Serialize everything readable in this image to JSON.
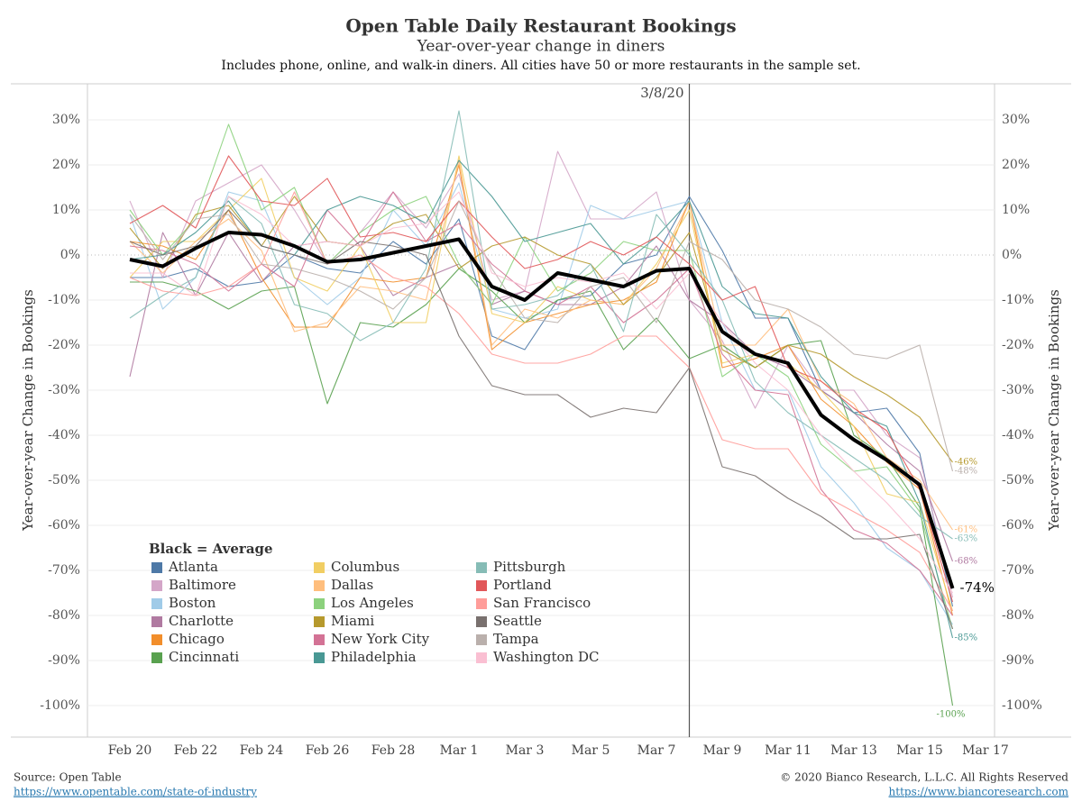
{
  "chart_data": {
    "type": "line",
    "title": "Open Table Daily Restaurant Bookings",
    "subtitle": "Year-over-year change in diners",
    "note": "Includes phone, online, and walk-in diners. All cities have 50 or more restaurants in the sample set.",
    "y_label": "Year-over-year Change in Bookings",
    "y2_label": "Year-over-year Change in Bookings",
    "legend_title": "Black = Average",
    "vline": {
      "label": "3/8/20",
      "category": 17
    },
    "source": "Source: Open Table",
    "source_url": "https://www.opentable.com/state-of-industry",
    "copyright": "© 2020 Bianco Research, L.L.C. All Rights Reserved",
    "copyright_url": "https://www.biancoresearch.com",
    "categories": [
      "Feb 20",
      null,
      "Feb 22",
      null,
      "Feb 24",
      null,
      "Feb 26",
      null,
      "Feb 28",
      null,
      "Mar 1",
      null,
      "Mar 3",
      null,
      "Mar 5",
      null,
      "Mar 7",
      null,
      "Mar 9",
      null,
      "Mar 11",
      null,
      "Mar 13",
      null,
      "Mar 15",
      null,
      "Mar 17"
    ],
    "ylim": [
      -107,
      38
    ],
    "yticks": [
      {
        "value": 30,
        "label": "30%"
      },
      {
        "value": 20,
        "label": "20%"
      },
      {
        "value": 10,
        "label": "10%"
      },
      {
        "value": 0,
        "label": "0%"
      },
      {
        "value": -10,
        "label": "-10%"
      },
      {
        "value": -20,
        "label": "-20%"
      },
      {
        "value": -30,
        "label": "-30%"
      },
      {
        "value": -40,
        "label": "-40%"
      },
      {
        "value": -50,
        "label": "-50%"
      },
      {
        "value": -60,
        "label": "-60%"
      },
      {
        "value": -70,
        "label": "-70%"
      },
      {
        "value": -80,
        "label": "-80%"
      },
      {
        "value": -90,
        "label": "-90%"
      },
      {
        "value": -100,
        "label": "-100%"
      }
    ],
    "grid": true,
    "series": [
      {
        "name": "Atlanta",
        "color": "#4e79a7",
        "values": [
          -5,
          -5,
          -3,
          -7,
          -6,
          0,
          -3,
          -4,
          3,
          -2,
          8,
          -18,
          -21,
          -10,
          -9,
          -2,
          0,
          13,
          1,
          -14,
          -14,
          -30,
          -35,
          -34,
          -44,
          -78,
          null
        ]
      },
      {
        "name": "Baltimore",
        "color": "#d4a6c8",
        "values": [
          12,
          -5,
          12,
          16,
          20,
          10,
          -2,
          5,
          14,
          6,
          18,
          -10,
          -8,
          23,
          8,
          8,
          14,
          -10,
          -19,
          -34,
          -20,
          -30,
          -30,
          -40,
          -45,
          -76,
          null
        ]
      },
      {
        "name": "Boston",
        "color": "#a0cbe8",
        "values": [
          9,
          -12,
          -5,
          14,
          12,
          -5,
          -11,
          -5,
          10,
          2,
          16,
          -12,
          -14,
          -12,
          11,
          8,
          10,
          12,
          -15,
          -30,
          -30,
          -47,
          -55,
          -65,
          -70,
          -82,
          null
        ]
      },
      {
        "name": "Charlotte",
        "color": "#b07aa1",
        "values": [
          -27,
          5,
          -9,
          5,
          -6,
          2,
          3,
          2,
          -9,
          -5,
          -2,
          -11,
          -8,
          -11,
          -11,
          -7,
          2,
          -10,
          -15,
          -22,
          -25,
          -30,
          -35,
          -42,
          -48,
          -68,
          null
        ],
        "value_labels": [
          null,
          null,
          null,
          null,
          null,
          null,
          null,
          null,
          null,
          null,
          null,
          null,
          null,
          null,
          null,
          null,
          null,
          null,
          null,
          null,
          null,
          null,
          null,
          null,
          null,
          "-68%",
          null
        ]
      },
      {
        "name": "Chicago",
        "color": "#f28e2b",
        "values": [
          3,
          2,
          -1,
          10,
          -5,
          -16,
          -16,
          -5,
          -6,
          -5,
          20,
          -21,
          -15,
          -13,
          -11,
          -10,
          -6,
          12,
          -25,
          -23,
          -20,
          -32,
          -38,
          -46,
          -52,
          -80,
          null
        ]
      },
      {
        "name": "Cincinnati",
        "color": "#59a14f",
        "values": [
          -6,
          -6,
          -8,
          -12,
          -8,
          -7,
          -33,
          -15,
          -16,
          -11,
          -3,
          -8,
          -15,
          -10,
          -8,
          -21,
          -14,
          -23,
          -20,
          -25,
          -20,
          -19,
          -40,
          -45,
          -56,
          -100,
          null
        ],
        "value_labels": [
          null,
          null,
          null,
          null,
          null,
          null,
          null,
          null,
          null,
          null,
          null,
          null,
          null,
          null,
          null,
          null,
          null,
          null,
          null,
          null,
          null,
          null,
          null,
          null,
          null,
          "-100%",
          null
        ]
      },
      {
        "name": "Columbus",
        "color": "#f1ce63",
        "values": [
          -5,
          3,
          3,
          10,
          17,
          -5,
          -8,
          2,
          -15,
          -15,
          22,
          -13,
          -15,
          -7,
          -10,
          -11,
          -2,
          10,
          -24,
          -22,
          -24,
          -30,
          -38,
          -53,
          -55,
          -79,
          null
        ]
      },
      {
        "name": "Dallas",
        "color": "#ffbe7d",
        "values": [
          3,
          -4,
          3,
          8,
          1,
          -17,
          -15,
          -7,
          -8,
          -10,
          21,
          -20,
          -12,
          -14,
          -10,
          -11,
          -3,
          12,
          -20,
          -20,
          -12,
          -28,
          -33,
          -45,
          -50,
          -61,
          null
        ],
        "value_labels": [
          null,
          null,
          null,
          null,
          null,
          null,
          null,
          null,
          null,
          null,
          null,
          null,
          null,
          null,
          null,
          null,
          null,
          null,
          null,
          null,
          null,
          null,
          null,
          null,
          null,
          "-61%",
          null
        ]
      },
      {
        "name": "Los Angeles",
        "color": "#8cd17d",
        "values": [
          10,
          0,
          8,
          29,
          10,
          15,
          -2,
          5,
          10,
          13,
          -2,
          -11,
          4,
          -8,
          -4,
          3,
          1,
          1,
          -27,
          -22,
          -27,
          -42,
          -48,
          -47,
          -57,
          -83,
          null
        ]
      },
      {
        "name": "Miami",
        "color": "#b6992d",
        "values": [
          6,
          -3,
          9,
          11,
          2,
          13,
          3,
          2,
          7,
          9,
          -3,
          2,
          4,
          0,
          -2,
          -11,
          -5,
          5,
          -21,
          -25,
          -20,
          -22,
          -27,
          -31,
          -36,
          -46,
          null
        ],
        "value_labels": [
          null,
          null,
          null,
          null,
          null,
          null,
          null,
          null,
          null,
          null,
          null,
          null,
          null,
          null,
          null,
          null,
          null,
          null,
          null,
          null,
          null,
          null,
          null,
          null,
          null,
          "-46%",
          null
        ]
      },
      {
        "name": "New York City",
        "color": "#d37295",
        "values": [
          2,
          1,
          -2,
          -8,
          -2,
          -7,
          10,
          2,
          14,
          3,
          7,
          -2,
          -8,
          -11,
          -7,
          -15,
          -10,
          -3,
          -22,
          -30,
          -31,
          -52,
          -61,
          -64,
          -70,
          -80,
          null
        ]
      },
      {
        "name": "Philadelphia",
        "color": "#499894",
        "values": [
          -1,
          0,
          5,
          12,
          2,
          0,
          10,
          13,
          11,
          7,
          21,
          13,
          3,
          5,
          7,
          -2,
          4,
          12,
          -7,
          -13,
          -14,
          -27,
          -35,
          -38,
          -55,
          -85,
          null
        ],
        "value_labels": [
          null,
          null,
          null,
          null,
          null,
          null,
          null,
          null,
          null,
          null,
          null,
          null,
          null,
          null,
          null,
          null,
          null,
          null,
          null,
          null,
          null,
          null,
          null,
          null,
          null,
          "-85%",
          null
        ]
      },
      {
        "name": "Pittsburgh",
        "color": "#86bcb6",
        "values": [
          -14,
          -9,
          -5,
          13,
          7,
          -11,
          -13,
          -19,
          -15,
          -3,
          32,
          -12,
          -11,
          -9,
          -2,
          -17,
          9,
          0,
          -10,
          -28,
          -35,
          -40,
          -45,
          -50,
          -58,
          -63,
          null
        ],
        "value_labels": [
          null,
          null,
          null,
          null,
          null,
          null,
          null,
          null,
          null,
          null,
          null,
          null,
          null,
          null,
          null,
          null,
          null,
          null,
          null,
          null,
          null,
          null,
          null,
          null,
          null,
          "-63%",
          null
        ]
      },
      {
        "name": "Portland",
        "color": "#e15759",
        "values": [
          7,
          11,
          6,
          22,
          12,
          11,
          17,
          4,
          5,
          3,
          12,
          4,
          -3,
          -1,
          3,
          0,
          4,
          -2,
          -10,
          -7,
          -25,
          -28,
          -34,
          -39,
          -52,
          -77,
          null
        ]
      },
      {
        "name": "San Francisco",
        "color": "#ff9d9a",
        "values": [
          -5,
          -8,
          -9,
          -7,
          -2,
          14,
          -2,
          0,
          -5,
          -7,
          -13,
          -22,
          -24,
          -24,
          -22,
          -18,
          -18,
          -25,
          -41,
          -43,
          -43,
          -53,
          -57,
          -61,
          -66,
          -79,
          null
        ]
      },
      {
        "name": "Seattle",
        "color": "#79706e",
        "values": [
          3,
          0,
          2,
          10,
          2,
          0,
          -2,
          3,
          2,
          0,
          -18,
          -29,
          -31,
          -31,
          -36,
          -34,
          -35,
          -25,
          -47,
          -49,
          -54,
          -58,
          -63,
          -63,
          -62,
          -83,
          null
        ]
      },
      {
        "name": "Tampa",
        "color": "#bab0ac",
        "values": [
          9,
          -1,
          8,
          9,
          -2,
          -3,
          -5,
          -8,
          -12,
          -5,
          12,
          -3,
          -14,
          -15,
          -7,
          -5,
          -15,
          3,
          -1,
          -10,
          -12,
          -16,
          -22,
          -23,
          -20,
          -48,
          null
        ],
        "value_labels": [
          null,
          null,
          null,
          null,
          null,
          null,
          null,
          null,
          null,
          null,
          null,
          null,
          null,
          null,
          null,
          null,
          null,
          null,
          null,
          null,
          null,
          null,
          null,
          null,
          null,
          "-48%",
          null
        ]
      },
      {
        "name": "Washington DC",
        "color": "#fabfd2",
        "values": [
          -4,
          -4,
          -9,
          13,
          9,
          2,
          3,
          2,
          6,
          7,
          14,
          -4,
          -7,
          -5,
          -6,
          -4,
          -12,
          -4,
          -15,
          -24,
          -30,
          -40,
          -48,
          -55,
          -63,
          -75,
          null
        ]
      },
      {
        "color": "#000000",
        "values": [
          -1,
          -2.5,
          1.5,
          5,
          4.5,
          2,
          -1.5,
          -1,
          0.5,
          2,
          3.5,
          -7,
          -10,
          -4,
          -5.5,
          -7,
          -3.5,
          -3,
          -17,
          -22,
          -24,
          -35.5,
          -41,
          -45.5,
          -51,
          -74,
          null
        ],
        "value_labels": [
          null,
          null,
          null,
          null,
          null,
          null,
          null,
          null,
          null,
          null,
          null,
          null,
          null,
          null,
          null,
          null,
          null,
          null,
          null,
          null,
          null,
          null,
          null,
          null,
          null,
          "-74%",
          null
        ]
      }
    ]
  }
}
